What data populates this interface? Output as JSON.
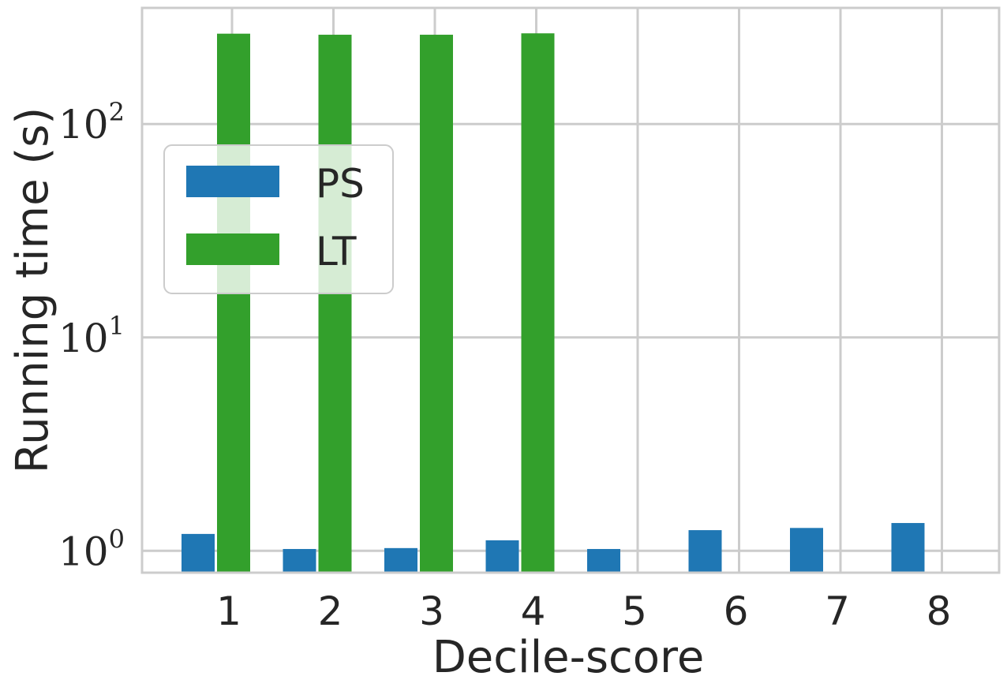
{
  "chart_data": {
    "type": "bar",
    "title": "",
    "xlabel": "Decile-score",
    "ylabel": "Running time (s)",
    "yscale": "log",
    "ylim": [
      0.79,
      350
    ],
    "yticks": [
      {
        "value": 1,
        "base": "10",
        "exp": "0"
      },
      {
        "value": 10,
        "base": "10",
        "exp": "1"
      },
      {
        "value": 100,
        "base": "10",
        "exp": "2"
      }
    ],
    "categories": [
      "1",
      "2",
      "3",
      "4",
      "5",
      "6",
      "7",
      "8"
    ],
    "series": [
      {
        "name": "PS",
        "color": "#1f77b4",
        "values": [
          1.2,
          1.02,
          1.03,
          1.12,
          1.02,
          1.25,
          1.28,
          1.35
        ]
      },
      {
        "name": "LT",
        "color": "#33a02c",
        "values": [
          265,
          262,
          262,
          266,
          null,
          null,
          null,
          null
        ]
      }
    ],
    "grid": true,
    "legend_position": "upper-left",
    "colors": {
      "grid": "#cccccc",
      "text": "#262626",
      "axes": "#cccccc"
    }
  }
}
